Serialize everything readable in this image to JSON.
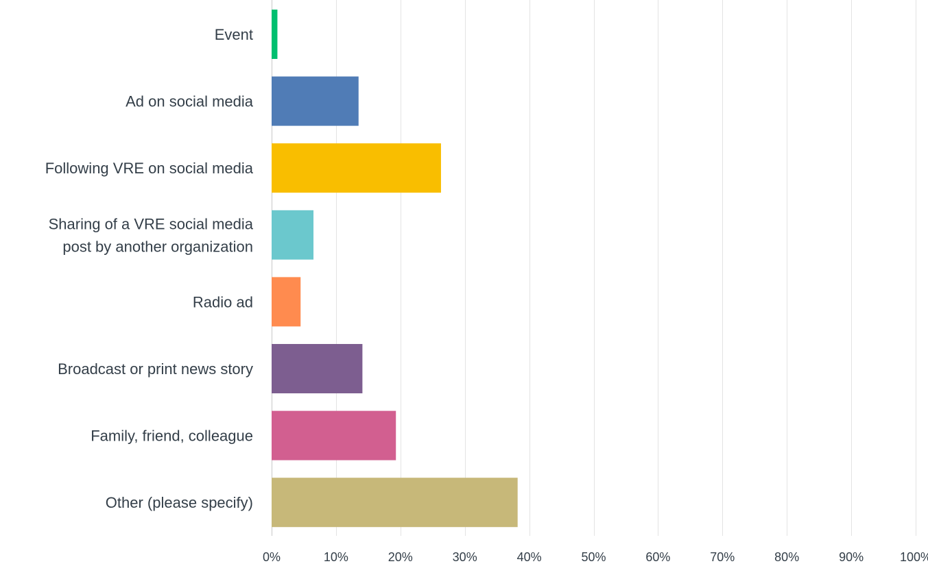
{
  "chart_data": {
    "type": "bar",
    "orientation": "horizontal",
    "categories": [
      [
        "Event"
      ],
      [
        "Ad on social media"
      ],
      [
        "Following VRE on social media"
      ],
      [
        "Sharing of a VRE social media",
        "post by another organization"
      ],
      [
        "Radio ad"
      ],
      [
        "Broadcast or print news story"
      ],
      [
        "Family, friend, colleague"
      ],
      [
        "Other (please specify)"
      ]
    ],
    "values": [
      0.9,
      13.5,
      26.3,
      6.5,
      4.5,
      14.1,
      19.3,
      38.2
    ],
    "colors": [
      "#00bf6f",
      "#507cb6",
      "#f9be00",
      "#6bc8cd",
      "#ff8b4f",
      "#7d5e90",
      "#d25f90",
      "#c7b879"
    ],
    "xlim": [
      0,
      100
    ],
    "x_ticks": [
      0,
      10,
      20,
      30,
      40,
      50,
      60,
      70,
      80,
      90,
      100
    ],
    "x_tick_format": "%",
    "grid": true,
    "legend": "none"
  }
}
